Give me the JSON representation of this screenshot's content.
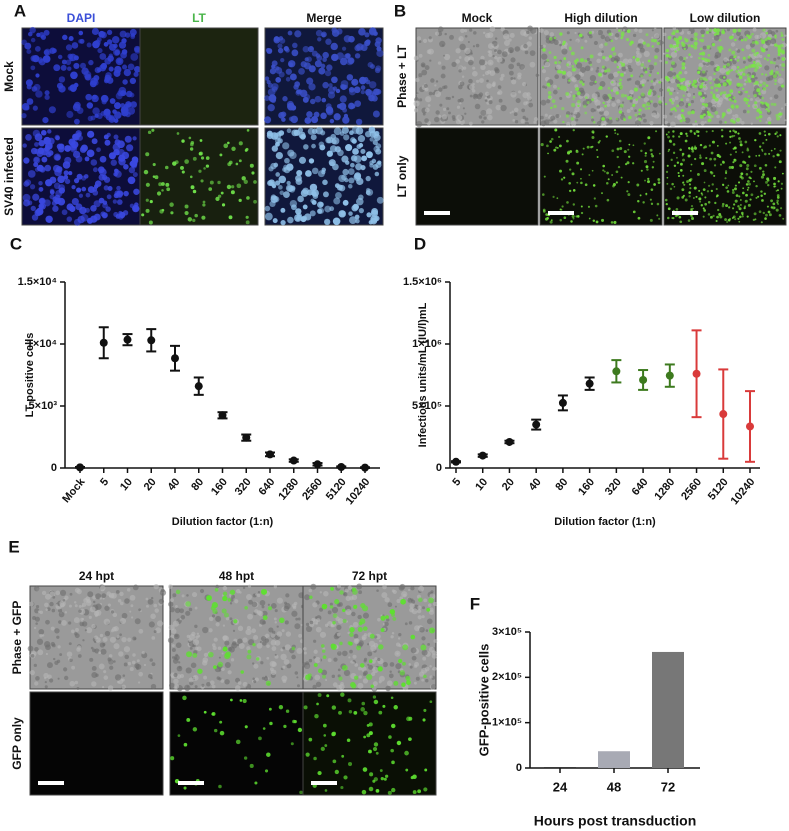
{
  "panels": [
    {
      "letter": "A",
      "columns": [
        "DAPI",
        "LT",
        "Merge"
      ],
      "rows": [
        "Mock",
        "SV40 infected"
      ]
    },
    {
      "letter": "B",
      "columns": [
        "Mock",
        "High dilution",
        "Low dilution"
      ],
      "rows": [
        "Phase + LT",
        "LT only"
      ]
    },
    {
      "letter": "C"
    },
    {
      "letter": "D"
    },
    {
      "letter": "E",
      "columns": [
        "24 hpt",
        "48 hpt",
        "72 hpt"
      ],
      "rows": [
        "Phase + GFP",
        "GFP only"
      ]
    },
    {
      "letter": "F"
    }
  ],
  "chart_data": [
    {
      "type": "errorbar",
      "y_label": "LT positive cells",
      "x_label": "Dilution factor (1:n)",
      "categories": [
        "Mock",
        "5",
        "10",
        "20",
        "40",
        "80",
        "160",
        "320",
        "640",
        "1280",
        "2560",
        "5120",
        "10240"
      ],
      "values": [
        50,
        10100,
        10350,
        10300,
        8850,
        6600,
        4250,
        2450,
        1100,
        600,
        300,
        80,
        30
      ],
      "errors": [
        30,
        1250,
        450,
        900,
        1000,
        700,
        250,
        250,
        150,
        100,
        100,
        50,
        30
      ],
      "color": "#111111",
      "ylim": [
        0,
        15000
      ],
      "yticks": [
        0,
        {
          "value": 5000,
          "label": "5×10³"
        },
        {
          "value": 10000,
          "label": "1×10⁴"
        },
        {
          "value": 15000,
          "label": "1.5×10⁴"
        }
      ]
    },
    {
      "type": "errorbar",
      "y_label": "Infectious units/mL (IU/l)mL",
      "x_label": "Dilution factor (1:n)",
      "categories": [
        "5",
        "10",
        "20",
        "40",
        "80",
        "160",
        "320",
        "640",
        "1280",
        "2560",
        "5120",
        "10240"
      ],
      "values": [
        50000,
        100000,
        210000,
        350000,
        525000,
        680000,
        780000,
        710000,
        745000,
        760000,
        435000,
        335000
      ],
      "errors": [
        5000,
        10000,
        10000,
        40000,
        60000,
        50000,
        90000,
        80000,
        90000,
        350000,
        360000,
        285000
      ],
      "colors": [
        "#111111",
        "#111111",
        "#111111",
        "#111111",
        "#111111",
        "#111111",
        "#3d7a1e",
        "#3d7a1e",
        "#3d7a1e",
        "#d93a3a",
        "#d93a3a",
        "#d93a3a"
      ],
      "ylim": [
        0,
        1500000
      ],
      "yticks": [
        0,
        {
          "value": 500000,
          "label": "5×10⁵"
        },
        {
          "value": 1000000,
          "label": "1×10⁶"
        },
        {
          "value": 1500000,
          "label": "1.5×10⁶"
        }
      ]
    },
    {
      "type": "bar",
      "y_label": "GFP-positive cells",
      "x_label": "Hours post transduction",
      "categories": [
        "24",
        "48",
        "72"
      ],
      "values": [
        2000,
        37000,
        256000
      ],
      "colors": [
        "#333333",
        "#a8aab4",
        "#777777"
      ],
      "ylim": [
        0,
        300000
      ],
      "yticks": [
        0,
        {
          "value": 100000,
          "label": "1×10⁵"
        },
        {
          "value": 200000,
          "label": "2×10⁵"
        },
        {
          "value": 300000,
          "label": "3×10⁵"
        }
      ]
    }
  ]
}
